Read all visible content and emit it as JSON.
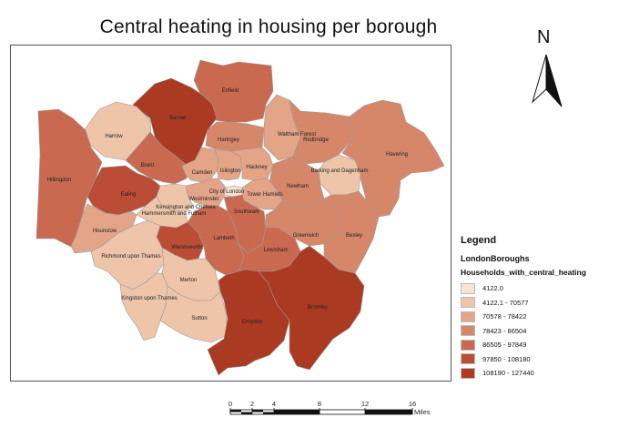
{
  "title": "Central heating in housing per borough",
  "north_arrow": {
    "letter": "N"
  },
  "legend": {
    "title": "Legend",
    "layer": "LondonBoroughs",
    "field": "Households_with_central_heating",
    "classes": [
      {
        "label": "4122.0",
        "color": "#f7e4d4"
      },
      {
        "label": "4122.1 - 70577",
        "color": "#efc5a9"
      },
      {
        "label": "70578 - 78422",
        "color": "#e3a487"
      },
      {
        "label": "78423 - 86504",
        "color": "#d6876a"
      },
      {
        "label": "86505 - 97849",
        "color": "#c96a50"
      },
      {
        "label": "97850 - 108180",
        "color": "#bb4d37"
      },
      {
        "label": "108190 - 127440",
        "color": "#ab3a22"
      }
    ]
  },
  "scale_bar": {
    "ticks": [
      "0",
      "2",
      "4",
      "8",
      "12",
      "16"
    ],
    "unit": "Miles"
  },
  "boroughs": [
    {
      "name": "Enfield",
      "class": 4
    },
    {
      "name": "Barnet",
      "class": 6
    },
    {
      "name": "Harrow",
      "class": 1
    },
    {
      "name": "Hillingdon",
      "class": 4
    },
    {
      "name": "Brent",
      "class": 4
    },
    {
      "name": "Haringey",
      "class": 3
    },
    {
      "name": "Waltham Forest",
      "class": 2
    },
    {
      "name": "Redbridge",
      "class": 3
    },
    {
      "name": "Havering",
      "class": 3
    },
    {
      "name": "Ealing",
      "class": 5
    },
    {
      "name": "Camden",
      "class": 2
    },
    {
      "name": "Islington",
      "class": 2
    },
    {
      "name": "Hackney",
      "class": 2
    },
    {
      "name": "Barking and Dagenham",
      "class": 1
    },
    {
      "name": "Newham",
      "class": 3
    },
    {
      "name": "City of London",
      "class": 0
    },
    {
      "name": "Westminster",
      "class": 2
    },
    {
      "name": "Tower Hamlets",
      "class": 2
    },
    {
      "name": "Kensington and Chelsea",
      "class": 1
    },
    {
      "name": "Hammersmith and Fulham",
      "class": 1
    },
    {
      "name": "Hounslow",
      "class": 2
    },
    {
      "name": "Southwark",
      "class": 4
    },
    {
      "name": "Greenwich",
      "class": 3
    },
    {
      "name": "Bexley",
      "class": 3
    },
    {
      "name": "Wandsworth",
      "class": 5
    },
    {
      "name": "Lambeth",
      "class": 4
    },
    {
      "name": "Lewisham",
      "class": 4
    },
    {
      "name": "Richmond upon Thames",
      "class": 1
    },
    {
      "name": "Merton",
      "class": 1
    },
    {
      "name": "Kingston upon Thames",
      "class": 1
    },
    {
      "name": "Sutton",
      "class": 1
    },
    {
      "name": "Croydon",
      "class": 6
    },
    {
      "name": "Bromley",
      "class": 6
    }
  ]
}
